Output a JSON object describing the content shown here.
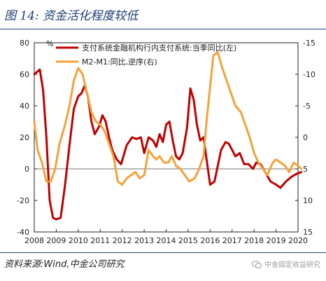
{
  "page": {
    "title": "图 14:  资金活化程度较低",
    "source": "资料来源:Wind,中金公司研究",
    "watermark": "中金固定收益研究"
  },
  "colors": {
    "red": "#c00000",
    "orange": "#f4a23a",
    "text": "#222222",
    "rule": "#1f3f74"
  },
  "chart_data": {
    "type": "line",
    "y_left": {
      "min": -40,
      "max": 80,
      "ticks": [
        -40,
        -20,
        0,
        20,
        40,
        60,
        80
      ],
      "unit": "%"
    },
    "y_right": {
      "min": -15,
      "max": 15,
      "reversed": true,
      "ticks": [
        -15,
        -10,
        -5,
        0,
        5,
        10,
        15
      ]
    },
    "x": {
      "min": 2008,
      "max": 2020,
      "ticks": [
        2008,
        2009,
        2010,
        2011,
        2012,
        2013,
        2014,
        2015,
        2016,
        2017,
        2018,
        2019,
        2020
      ]
    },
    "legend_position": "top",
    "series": [
      {
        "name": "支付系统金融机构行内支付系统:当季同比(左)",
        "axis": "left",
        "color": "#c00000",
        "points": [
          [
            2008.0,
            60
          ],
          [
            2008.25,
            63
          ],
          [
            2008.4,
            50
          ],
          [
            2008.55,
            20
          ],
          [
            2008.7,
            -20
          ],
          [
            2008.85,
            -31
          ],
          [
            2009.0,
            -32
          ],
          [
            2009.2,
            -31
          ],
          [
            2009.4,
            -10
          ],
          [
            2009.6,
            15
          ],
          [
            2009.8,
            38
          ],
          [
            2010.0,
            46
          ],
          [
            2010.15,
            48
          ],
          [
            2010.3,
            53
          ],
          [
            2010.45,
            45
          ],
          [
            2010.6,
            30
          ],
          [
            2010.75,
            22
          ],
          [
            2010.95,
            27
          ],
          [
            2011.1,
            34
          ],
          [
            2011.25,
            30
          ],
          [
            2011.4,
            20
          ],
          [
            2011.55,
            12
          ],
          [
            2011.75,
            6
          ],
          [
            2011.95,
            3
          ],
          [
            2012.2,
            15
          ],
          [
            2012.45,
            20
          ],
          [
            2012.65,
            19
          ],
          [
            2012.85,
            20
          ],
          [
            2013.0,
            10
          ],
          [
            2013.2,
            20
          ],
          [
            2013.4,
            18
          ],
          [
            2013.55,
            14
          ],
          [
            2013.7,
            22
          ],
          [
            2013.85,
            17
          ],
          [
            2014.0,
            28
          ],
          [
            2014.15,
            30
          ],
          [
            2014.3,
            18
          ],
          [
            2014.45,
            8
          ],
          [
            2014.6,
            6
          ],
          [
            2014.75,
            10
          ],
          [
            2014.95,
            26
          ],
          [
            2015.1,
            51
          ],
          [
            2015.25,
            44
          ],
          [
            2015.4,
            28
          ],
          [
            2015.55,
            18
          ],
          [
            2015.7,
            20
          ],
          [
            2015.85,
            5
          ],
          [
            2016.0,
            -10
          ],
          [
            2016.2,
            -8
          ],
          [
            2016.35,
            2
          ],
          [
            2016.5,
            12
          ],
          [
            2016.7,
            17
          ],
          [
            2016.85,
            16
          ],
          [
            2017.0,
            12
          ],
          [
            2017.15,
            8
          ],
          [
            2017.35,
            10
          ],
          [
            2017.55,
            3
          ],
          [
            2017.75,
            3
          ],
          [
            2017.95,
            0
          ],
          [
            2018.1,
            4
          ],
          [
            2018.3,
            3
          ],
          [
            2018.5,
            -2
          ],
          [
            2018.75,
            -8
          ],
          [
            2019.0,
            -10
          ],
          [
            2019.2,
            -12
          ],
          [
            2019.45,
            -8
          ],
          [
            2019.7,
            -5
          ],
          [
            2019.95,
            -3
          ],
          [
            2020.15,
            -2
          ]
        ]
      },
      {
        "name": "M2-M1:同比,逆序(右)",
        "axis": "right",
        "color": "#f4a23a",
        "points": [
          [
            2008.0,
            -2.5
          ],
          [
            2008.15,
            2
          ],
          [
            2008.35,
            4
          ],
          [
            2008.55,
            7
          ],
          [
            2008.75,
            7
          ],
          [
            2008.95,
            5
          ],
          [
            2009.15,
            1
          ],
          [
            2009.4,
            -2
          ],
          [
            2009.6,
            -5
          ],
          [
            2009.8,
            -9
          ],
          [
            2010.0,
            -11
          ],
          [
            2010.2,
            -10
          ],
          [
            2010.4,
            -7
          ],
          [
            2010.6,
            -4
          ],
          [
            2010.8,
            -2.5
          ],
          [
            2011.0,
            -2
          ],
          [
            2011.2,
            -1
          ],
          [
            2011.4,
            1
          ],
          [
            2011.6,
            3
          ],
          [
            2011.8,
            7
          ],
          [
            2012.0,
            7.5
          ],
          [
            2012.2,
            6.5
          ],
          [
            2012.4,
            6
          ],
          [
            2012.6,
            5.5
          ],
          [
            2012.8,
            6.5
          ],
          [
            2013.0,
            6
          ],
          [
            2013.2,
            2
          ],
          [
            2013.4,
            3
          ],
          [
            2013.55,
            3.5
          ],
          [
            2013.7,
            3
          ],
          [
            2013.9,
            4
          ],
          [
            2014.1,
            4
          ],
          [
            2014.25,
            3
          ],
          [
            2014.45,
            4.5
          ],
          [
            2014.65,
            5
          ],
          [
            2014.85,
            6
          ],
          [
            2015.05,
            7
          ],
          [
            2015.3,
            6.5
          ],
          [
            2015.5,
            5
          ],
          [
            2015.7,
            3
          ],
          [
            2015.85,
            -3
          ],
          [
            2016.0,
            -8
          ],
          [
            2016.15,
            -13
          ],
          [
            2016.35,
            -13.5
          ],
          [
            2016.55,
            -11
          ],
          [
            2016.75,
            -9
          ],
          [
            2016.95,
            -7
          ],
          [
            2017.15,
            -5
          ],
          [
            2017.4,
            -4
          ],
          [
            2017.6,
            -2
          ],
          [
            2017.8,
            0
          ],
          [
            2018.0,
            2.5
          ],
          [
            2018.2,
            4
          ],
          [
            2018.4,
            5
          ],
          [
            2018.6,
            6
          ],
          [
            2018.85,
            4
          ],
          [
            2019.0,
            3.5
          ],
          [
            2019.2,
            4
          ],
          [
            2019.4,
            4.5
          ],
          [
            2019.6,
            5.5
          ],
          [
            2019.8,
            4
          ],
          [
            2020.0,
            4.5
          ],
          [
            2020.15,
            5
          ]
        ]
      }
    ]
  }
}
